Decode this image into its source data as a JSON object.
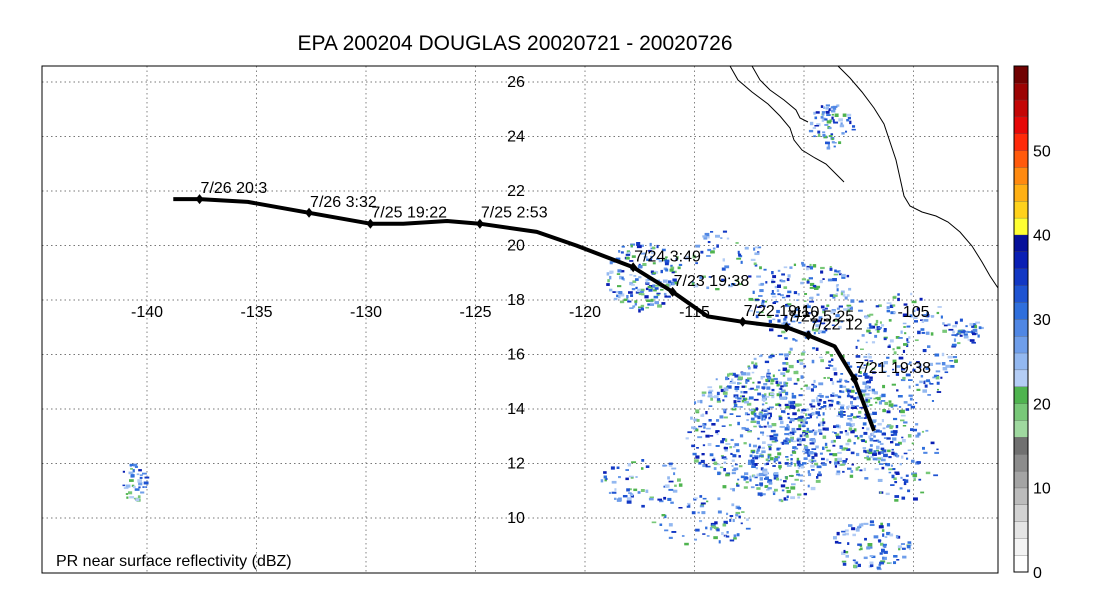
{
  "title": "EPA 200204 DOUGLAS 20020721 - 20020726",
  "caption": "PR near surface reflectivity (dBZ)",
  "axes": {
    "lon_ticks": [
      -140,
      -135,
      -130,
      -125,
      -120,
      -115,
      -110,
      -105
    ],
    "lat_ticks": [
      10,
      12,
      14,
      16,
      18,
      20,
      22,
      24,
      26
    ]
  },
  "colorbar": {
    "ticks": [
      0,
      10,
      20,
      30,
      40,
      50
    ],
    "colors": [
      "#ffffff",
      "#f4f4f4",
      "#e4e4e4",
      "#d2d2d2",
      "#bcbcbc",
      "#a4a4a4",
      "#8c8c8c",
      "#707070",
      "#9fd89f",
      "#78c878",
      "#4fb44f",
      "#b4cdf5",
      "#93b8f0",
      "#6f9eea",
      "#5087e4",
      "#2f6fdc",
      "#1f54d2",
      "#1238c4",
      "#0a1fb4",
      "#06109a",
      "#ffff33",
      "#ffd21c",
      "#ffb014",
      "#ff8a10",
      "#ff5a0c",
      "#ff2a0a",
      "#e60808",
      "#c40606",
      "#9c0404",
      "#700202"
    ]
  },
  "track": [
    {
      "lat": 13.2,
      "lon": -106.8
    },
    {
      "lat": 15.1,
      "lon": -107.7,
      "label": "7/21 19:38"
    },
    {
      "lat": 16.3,
      "lon": -108.6
    },
    {
      "lat": 16.7,
      "lon": -109.8,
      "label": "7/22 12"
    },
    {
      "lat": 17.0,
      "lon": -110.8,
      "label": "7/22 5:25"
    },
    {
      "lat": 17.2,
      "lon": -112.8,
      "label": "7/22 19:1"
    },
    {
      "lat": 17.4,
      "lon": -114.4
    },
    {
      "lat": 18.3,
      "lon": -116.0,
      "label": "7/23 19:38"
    },
    {
      "lat": 19.2,
      "lon": -117.8,
      "label": "7/24 3:49"
    },
    {
      "lat": 20.0,
      "lon": -120.4
    },
    {
      "lat": 20.5,
      "lon": -122.2
    },
    {
      "lat": 20.8,
      "lon": -124.8,
      "label": "7/25 2:53"
    },
    {
      "lat": 20.9,
      "lon": -126.3
    },
    {
      "lat": 20.8,
      "lon": -128.3
    },
    {
      "lat": 20.8,
      "lon": -129.8,
      "label": "7/25 19:22"
    },
    {
      "lat": 21.2,
      "lon": -132.6,
      "label": "7/26 3:32"
    },
    {
      "lat": 21.6,
      "lon": -135.4
    },
    {
      "lat": 21.7,
      "lon": -137.6,
      "label": "7/26 20:3"
    },
    {
      "lat": 21.7,
      "lon": -138.8
    }
  ]
}
